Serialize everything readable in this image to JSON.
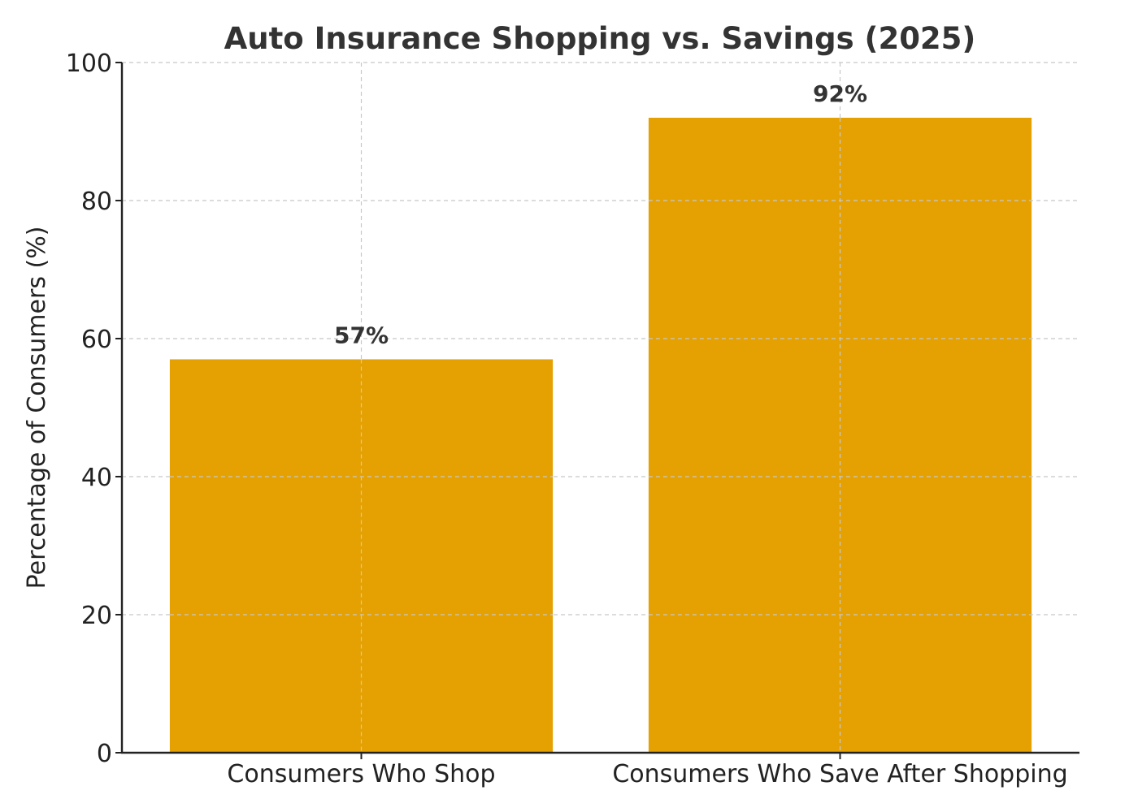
{
  "chart_data": {
    "type": "bar",
    "title": "Auto Insurance Shopping vs. Savings (2025)",
    "xlabel": "",
    "ylabel": "Percentage of Consumers (%)",
    "categories": [
      "Consumers Who Shop",
      "Consumers Who Save After Shopping"
    ],
    "values": [
      57,
      92
    ],
    "value_labels": [
      "57%",
      "92%"
    ],
    "ylim": [
      0,
      100
    ],
    "yticks": [
      0,
      20,
      40,
      60,
      80,
      100
    ],
    "grid": true,
    "bar_color": "#E5A102"
  }
}
